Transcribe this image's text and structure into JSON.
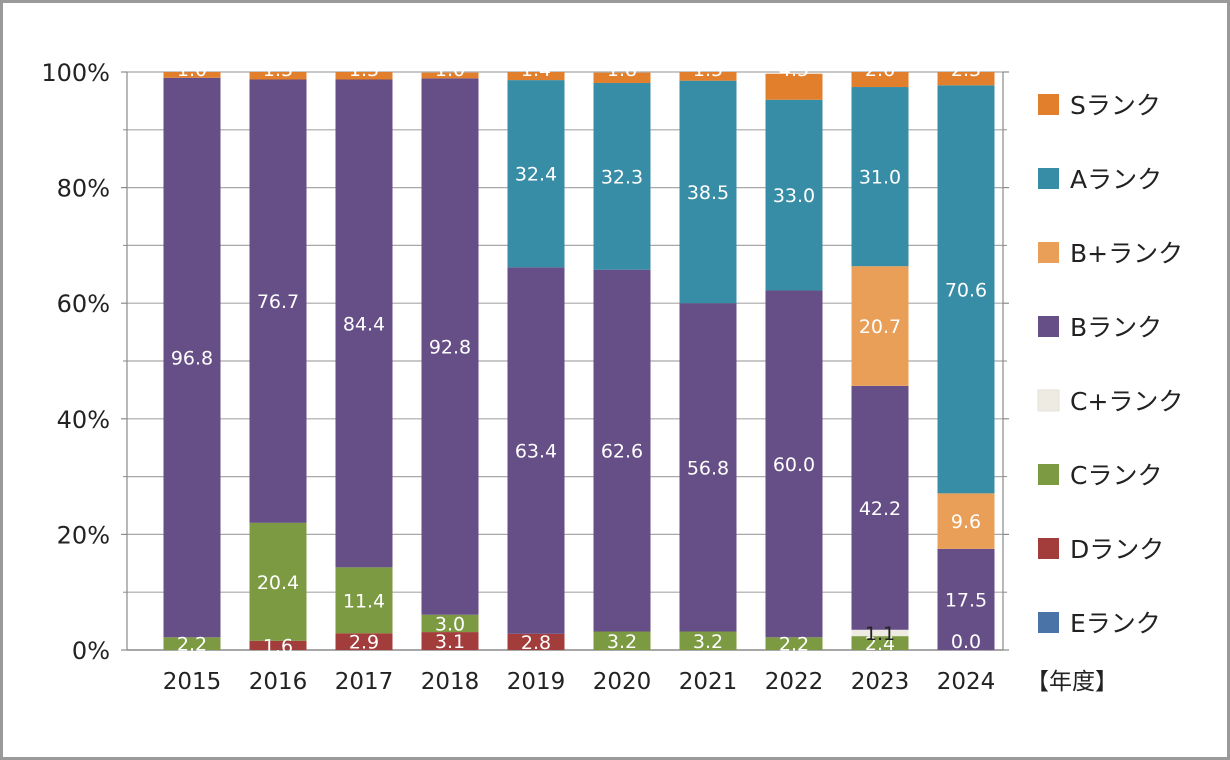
{
  "chart_data": {
    "type": "bar",
    "stacked": true,
    "normalized": true,
    "categories": [
      "2015",
      "2016",
      "2017",
      "2018",
      "2019",
      "2020",
      "2021",
      "2022",
      "2023",
      "2024"
    ],
    "x_unit_label": "【年度】",
    "y_ticks": [
      "0%",
      "20%",
      "40%",
      "60%",
      "80%",
      "100%"
    ],
    "ylim": [
      0,
      100
    ],
    "grid": true,
    "legend_position": "right",
    "series": [
      {
        "name": "Eランク",
        "color": "#4a74a8",
        "values": [
          0,
          0,
          0,
          0,
          0,
          0,
          0,
          0,
          0,
          0
        ],
        "labels": [
          "",
          "",
          "",
          "",
          "",
          "",
          "",
          "",
          "",
          ""
        ]
      },
      {
        "name": "Dランク",
        "color": "#a33d3b",
        "values": [
          0,
          1.6,
          2.9,
          3.1,
          2.8,
          0,
          0,
          0,
          0,
          0
        ],
        "labels": [
          "",
          "1.6",
          "2.9",
          "3.1",
          "2.8",
          "",
          "",
          "",
          "",
          ""
        ]
      },
      {
        "name": "Cランク",
        "color": "#7c9a41",
        "values": [
          2.2,
          20.4,
          11.4,
          3.0,
          0,
          3.2,
          3.2,
          2.2,
          2.4,
          0
        ],
        "labels": [
          "2.2",
          "20.4",
          "11.4",
          "3.0",
          "",
          "3.2",
          "3.2",
          "2.2",
          "2.4",
          ""
        ]
      },
      {
        "name": "C+ランク",
        "color": "#eeebe3",
        "values": [
          0,
          0,
          0,
          0,
          0,
          0,
          0,
          0,
          1.1,
          0
        ],
        "labels": [
          "",
          "",
          "",
          "",
          "",
          "",
          "",
          "",
          "1.1",
          ""
        ]
      },
      {
        "name": "Bランク",
        "color": "#664e86",
        "values": [
          96.8,
          76.7,
          84.4,
          92.8,
          63.4,
          62.6,
          56.8,
          60.0,
          42.2,
          17.5
        ],
        "labels": [
          "96.8",
          "76.7",
          "84.4",
          "92.8",
          "63.4",
          "62.6",
          "56.8",
          "60.0",
          "42.2",
          "17.5"
        ]
      },
      {
        "name": "B+ランク",
        "color": "#ea9f58",
        "values": [
          0,
          0,
          0,
          0,
          0,
          0,
          0,
          0,
          20.7,
          9.6
        ],
        "labels": [
          "",
          "",
          "",
          "",
          "",
          "",
          "",
          "",
          "20.7",
          "9.6"
        ]
      },
      {
        "name": "Aランク",
        "color": "#388da6",
        "values": [
          0,
          0,
          0,
          0,
          32.4,
          32.3,
          38.5,
          33.0,
          31.0,
          70.6
        ],
        "labels": [
          "",
          "",
          "",
          "",
          "32.4",
          "32.3",
          "38.5",
          "33.0",
          "31.0",
          "70.6"
        ]
      },
      {
        "name": "Sランク",
        "color": "#e27f2d",
        "values": [
          1.0,
          1.3,
          1.3,
          1.0,
          1.4,
          1.8,
          1.5,
          4.5,
          2.6,
          2.3
        ],
        "labels": [
          "1.0",
          "1.3",
          "1.3",
          "1.0",
          "1.4",
          "1.8",
          "1.5",
          "4.5",
          "2.6",
          "2.3"
        ]
      }
    ],
    "extra_labels": [
      {
        "category": "2024",
        "series": "Eランク",
        "text": "0.0"
      }
    ],
    "legend_order": [
      "Sランク",
      "Aランク",
      "B+ランク",
      "Bランク",
      "C+ランク",
      "Cランク",
      "Dランク",
      "Eランク"
    ]
  }
}
